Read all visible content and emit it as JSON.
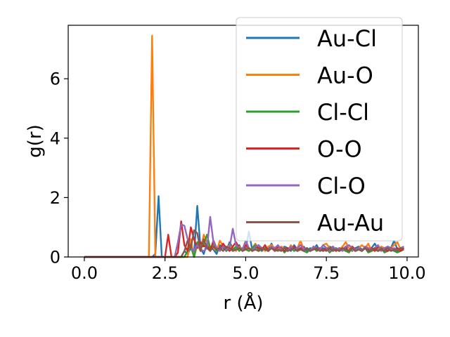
{
  "chart_data": {
    "type": "line",
    "title": "",
    "xlabel": "r (Å)",
    "ylabel": "g(r)",
    "xlim": [
      -0.5,
      10.35
    ],
    "ylim": [
      0,
      7.8
    ],
    "xticks": [
      0.0,
      2.5,
      5.0,
      7.5,
      10.0
    ],
    "xtick_labels": [
      "0.0",
      "2.5",
      "5.0",
      "7.5",
      "10.0"
    ],
    "yticks": [
      0,
      2,
      4,
      6
    ],
    "ytick_labels": [
      "0",
      "2",
      "4",
      "6"
    ],
    "grid": false,
    "legend_position": "top-right",
    "x_start": 0.0,
    "x_step": 0.1,
    "series": [
      {
        "name": "Au-Cl",
        "color": "#1f77b4",
        "values": [
          0,
          0,
          0,
          0,
          0,
          0,
          0,
          0,
          0,
          0,
          0,
          0,
          0,
          0,
          0,
          0,
          0,
          0,
          0,
          0,
          0,
          0,
          0.1,
          2.05,
          0,
          0,
          0,
          0,
          0,
          0,
          0,
          0.2,
          0.1,
          0.3,
          0.1,
          1.72,
          0.3,
          0.1,
          0.45,
          0.3,
          0.25,
          0.1,
          0.4,
          0.3,
          0.2,
          0.5,
          0.3,
          0.25,
          0.4,
          0.2,
          0.3,
          0.85,
          0.25,
          0.3,
          0.4,
          0.2,
          0.3,
          0.25,
          0.45,
          0.2,
          0.3,
          0.2,
          0.35,
          0.3,
          0.2,
          0.4,
          0.25,
          0.3,
          0.35,
          0.2,
          0.3,
          0.25,
          0.4,
          0.2,
          0.3,
          0.25,
          0.35,
          0.3,
          0.2,
          0.3,
          0.25,
          0.35,
          0.3,
          0.2,
          0.3,
          0.35,
          0.25,
          0.3,
          0.2,
          0.3,
          0.45,
          0.25,
          0.3,
          0.2,
          0.35,
          0.3,
          0.55,
          0.25,
          0.3,
          0.35
        ]
      },
      {
        "name": "Au-O",
        "color": "#ff7f0e",
        "values": [
          0,
          0,
          0,
          0,
          0,
          0,
          0,
          0,
          0,
          0,
          0,
          0,
          0,
          0,
          0,
          0,
          0,
          0,
          0,
          0,
          0,
          7.45,
          0,
          0,
          0,
          0,
          0,
          0,
          0,
          0,
          0,
          0,
          0,
          0.6,
          0,
          0.4,
          0.2,
          0.75,
          0.5,
          0.3,
          0.3,
          0.2,
          0.55,
          0.35,
          0.25,
          0.4,
          0.3,
          0.2,
          0.35,
          0.25,
          0.4,
          0.2,
          0.3,
          0.45,
          0.25,
          0.3,
          0.2,
          0.35,
          0.4,
          0.3,
          0.25,
          0.35,
          0.3,
          0.2,
          0.4,
          0.25,
          0.3,
          0.55,
          0.25,
          0.3,
          0.2,
          0.35,
          0.3,
          0.25,
          0.4,
          0.45,
          0.3,
          0.2,
          0.3,
          0.25,
          0.35,
          0.5,
          0.3,
          0.25,
          0.2,
          0.3,
          0.4,
          0.3,
          0.45,
          0.2,
          0.3,
          0.25,
          0.35,
          0.3,
          0.2,
          0.3,
          0.4,
          0.5,
          0.25,
          0.3
        ]
      },
      {
        "name": "Cl-Cl",
        "color": "#2ca02c",
        "values": [
          0,
          0,
          0,
          0,
          0,
          0,
          0,
          0,
          0,
          0,
          0,
          0,
          0,
          0,
          0,
          0,
          0,
          0,
          0,
          0,
          0,
          0,
          0,
          0,
          0,
          0,
          0,
          0,
          0,
          0,
          0,
          0,
          0.2,
          0.35,
          0,
          0.5,
          0.3,
          0.4,
          0.75,
          0.3,
          0.45,
          0.2,
          0.3,
          0.35,
          0.2,
          0.3,
          0.25,
          0.35,
          0.2,
          0.3,
          0.25,
          0.2,
          0.3,
          0.4,
          0.2,
          0.25,
          0.3,
          0.2,
          0.35,
          0.25,
          0.2,
          0.3,
          0.15,
          0.25,
          0.3,
          0.2,
          0.25,
          0.3,
          0.2,
          0.15,
          0.25,
          0.3,
          0.2,
          0.25,
          0.2,
          0.3,
          0.15,
          0.25,
          0.3,
          0.2,
          0.25,
          0.2,
          0.15,
          0.3,
          0.2,
          0.25,
          0.2,
          0.3,
          0.15,
          0.2,
          0.25,
          0.2,
          0.3,
          0.15,
          0.2,
          0.25,
          0.2,
          0.15,
          0.2,
          0.25
        ]
      },
      {
        "name": "O-O",
        "color": "#d62728",
        "values": [
          0,
          0,
          0,
          0,
          0,
          0,
          0,
          0,
          0,
          0,
          0,
          0,
          0,
          0,
          0,
          0,
          0,
          0,
          0,
          0,
          0,
          0,
          0,
          0,
          0,
          0,
          0.75,
          0,
          0,
          0.15,
          1.2,
          0.4,
          0.2,
          1.0,
          0.6,
          0.3,
          0.5,
          0.35,
          0.4,
          0.2,
          0.55,
          0.3,
          0.25,
          0.45,
          0.3,
          0.2,
          0.35,
          0.5,
          0.3,
          0.25,
          0.4,
          0.3,
          0.2,
          0.35,
          0.3,
          0.25,
          0.4,
          0.2,
          0.3,
          0.25,
          0.35,
          0.3,
          0.2,
          0.3,
          0.25,
          0.35,
          0.2,
          0.3,
          0.25,
          0.3,
          0.2,
          0.35,
          0.25,
          0.3,
          0.2,
          0.3,
          0.25,
          0.35,
          0.2,
          0.3,
          0.25,
          0.3,
          0.2,
          0.35,
          0.25,
          0.3,
          0.2,
          0.3,
          0.25,
          0.3,
          0.2,
          0.35,
          0.25,
          0.3,
          0.2,
          0.3,
          0.25,
          0.3,
          0.2,
          0.3
        ]
      },
      {
        "name": "Cl-O",
        "color": "#9467bd",
        "values": [
          0,
          0,
          0,
          0,
          0,
          0,
          0,
          0,
          0,
          0,
          0,
          0,
          0,
          0,
          0,
          0,
          0,
          0,
          0,
          0,
          0,
          0,
          0,
          0,
          0,
          0,
          0,
          0,
          0,
          0.5,
          1.1,
          1.05,
          0.6,
          0.3,
          0.2,
          0.4,
          0.25,
          0.2,
          0.3,
          1.35,
          0.5,
          0.3,
          0.2,
          0.35,
          0.25,
          0.3,
          0.95,
          0.4,
          0.3,
          0.25,
          0.55,
          0.3,
          0.2,
          0.35,
          0.4,
          0.3,
          0.25,
          0.2,
          0.35,
          0.3,
          0.4,
          0.25,
          0.3,
          0.2,
          0.35,
          0.25,
          0.3,
          0.4,
          0.25,
          0.3,
          0.2,
          0.35,
          0.3,
          0.25,
          0.4,
          0.3,
          0.2,
          0.35,
          0.25,
          0.3,
          0.2,
          0.35,
          0.4,
          0.3,
          0.25,
          0.3,
          0.2,
          0.35,
          0.3,
          0.25,
          0.3,
          0.4,
          0.2,
          0.3,
          0.35,
          0.25,
          0.3,
          0.2,
          0.3,
          0.35
        ]
      },
      {
        "name": "Au-Au",
        "color": "#8c564b",
        "values": [
          0,
          0,
          0,
          0,
          0,
          0,
          0,
          0,
          0,
          0,
          0,
          0,
          0,
          0,
          0,
          0,
          0,
          0,
          0,
          0,
          0,
          0,
          0,
          0,
          0,
          0,
          0,
          0,
          0,
          0,
          0,
          0.2,
          0.55,
          0.3,
          0.9,
          0.8,
          0.2,
          0.6,
          0.3,
          0.2,
          0.35,
          0.25,
          0.3,
          0.2,
          0.35,
          0.3,
          0.2,
          0.25,
          0.3,
          0.2,
          0.25,
          0.3,
          0.2,
          0.25,
          0.2,
          0.3,
          0.25,
          0.2,
          0.3,
          0.2,
          0.25,
          0.2,
          0.3,
          0.2,
          0.25,
          0.3,
          0.2,
          0.25,
          0.2,
          0.3,
          0.2,
          0.25,
          0.3,
          0.2,
          0.25,
          0.2,
          0.3,
          0.2,
          0.25,
          0.2,
          0.3,
          0.25,
          0.2,
          0.3,
          0.2,
          0.25,
          0.2,
          0.3,
          0.2,
          0.25,
          0.3,
          0.2,
          0.25,
          0.2,
          0.3,
          0.2,
          0.25,
          0.2,
          0.3,
          0.25
        ]
      }
    ]
  }
}
